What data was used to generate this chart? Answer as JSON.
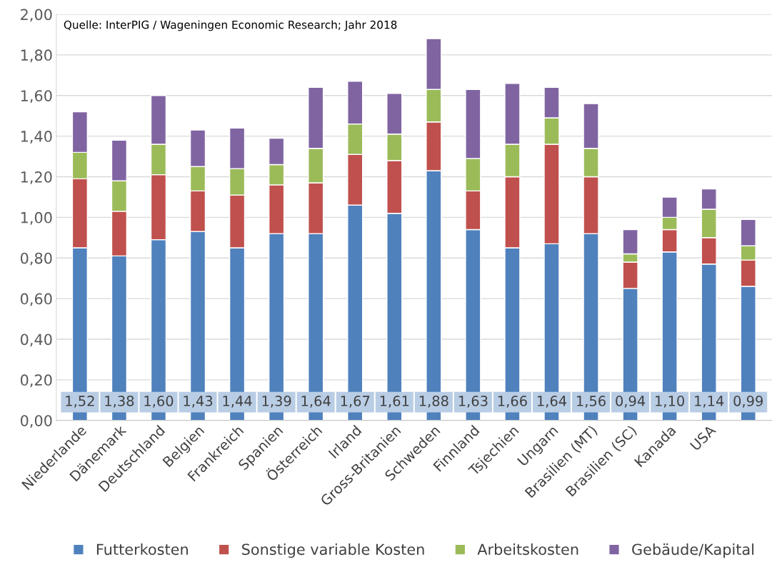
{
  "chart_data": {
    "type": "bar",
    "stacked": true,
    "categories": [
      "Niederlande",
      "Dänemark",
      "Deutschland",
      "Belgien",
      "Frankreich",
      "Spanien",
      "Österreich",
      "Irland",
      "Gross-Britanien",
      "Schweden",
      "Finnland",
      "Tsjechien",
      "Ungarn",
      "Brasilien (MT)",
      "Brasilien (SC)",
      "Kanada",
      "USA",
      null
    ],
    "series": [
      {
        "name": "Futterkosten",
        "color": "#4f81bd",
        "values": [
          0.85,
          0.81,
          0.89,
          0.93,
          0.85,
          0.92,
          0.92,
          1.06,
          1.02,
          1.23,
          0.94,
          0.85,
          0.87,
          0.92,
          0.65,
          0.83,
          0.77,
          0.66
        ]
      },
      {
        "name": "Sonstige variable Kosten",
        "color": "#c0504d",
        "values": [
          0.34,
          0.22,
          0.32,
          0.2,
          0.26,
          0.24,
          0.25,
          0.25,
          0.26,
          0.24,
          0.19,
          0.35,
          0.49,
          0.28,
          0.13,
          0.11,
          0.13,
          0.13
        ]
      },
      {
        "name": "Arbeitskosten",
        "color": "#9bbb59",
        "values": [
          0.13,
          0.15,
          0.15,
          0.12,
          0.13,
          0.1,
          0.17,
          0.15,
          0.13,
          0.16,
          0.16,
          0.16,
          0.13,
          0.14,
          0.04,
          0.06,
          0.14,
          0.07
        ]
      },
      {
        "name": "Gebäude/Kapital",
        "color": "#8064a2",
        "values": [
          0.2,
          0.2,
          0.24,
          0.18,
          0.2,
          0.13,
          0.3,
          0.21,
          0.2,
          0.25,
          0.34,
          0.3,
          0.15,
          0.22,
          0.12,
          0.1,
          0.1,
          0.13
        ]
      }
    ],
    "totals": [
      "1,52",
      "1,38",
      "1,60",
      "1,43",
      "1,44",
      "1,39",
      "1,64",
      "1,67",
      "1,61",
      "1,88",
      "1,63",
      "1,66",
      "1,64",
      "1,56",
      "0,94",
      "1,10",
      "1,14",
      "0,99"
    ],
    "ylim": [
      0,
      2
    ],
    "yticks": [
      {
        "value": 0,
        "label": "0,00"
      },
      {
        "value": 0.2,
        "label": "0,20"
      },
      {
        "value": 0.4,
        "label": "0,40"
      },
      {
        "value": 0.6,
        "label": "0,60"
      },
      {
        "value": 0.8,
        "label": "0,80"
      },
      {
        "value": 1.0,
        "label": "1,00"
      },
      {
        "value": 1.2,
        "label": "1,20"
      },
      {
        "value": 1.4,
        "label": "1,40"
      },
      {
        "value": 1.6,
        "label": "1,60"
      },
      {
        "value": 1.8,
        "label": "1,80"
      },
      {
        "value": 2.0,
        "label": "2,00"
      }
    ],
    "grid": "y",
    "legend": "bottom",
    "annotations": [
      "Quelle: InterPIG / Wageningen Economic Research; Jahr 2018"
    ]
  }
}
